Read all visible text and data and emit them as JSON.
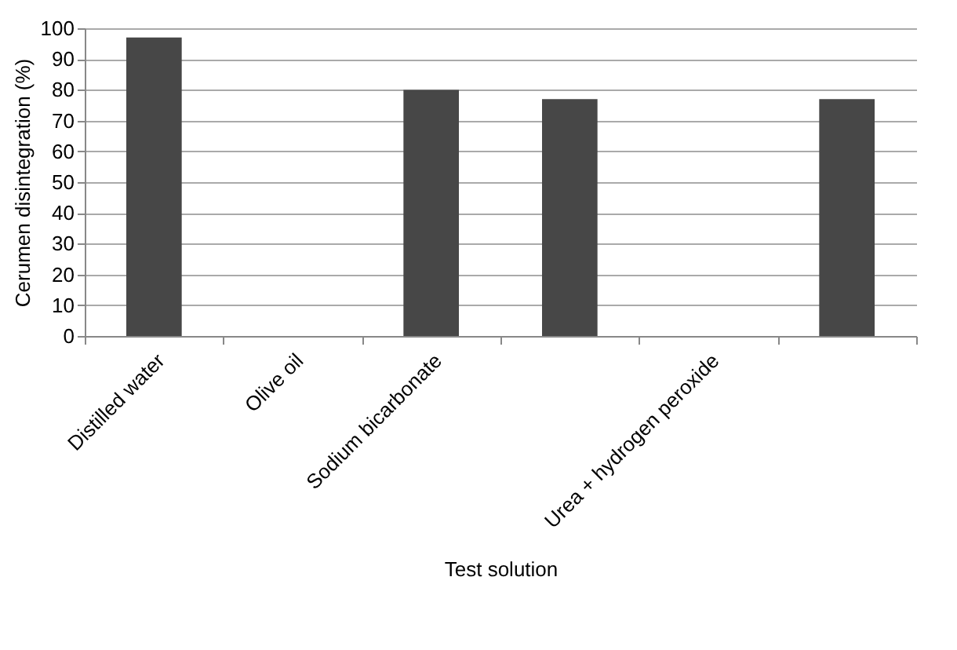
{
  "chart_data": {
    "type": "bar",
    "xlabel": "Test solution",
    "ylabel": "Cerumen disintegration (%)",
    "categories": [
      "Distilled water",
      "Olive oil",
      "Sodium bicarbonate",
      null,
      "Urea + hydrogen peroxide",
      null
    ],
    "values": [
      97,
      0,
      80,
      77,
      0,
      77
    ],
    "color": "#474747",
    "ylim": [
      0,
      100
    ],
    "yticks": [
      0,
      10,
      20,
      30,
      40,
      50,
      60,
      70,
      80,
      90,
      100
    ],
    "grid": "y"
  }
}
